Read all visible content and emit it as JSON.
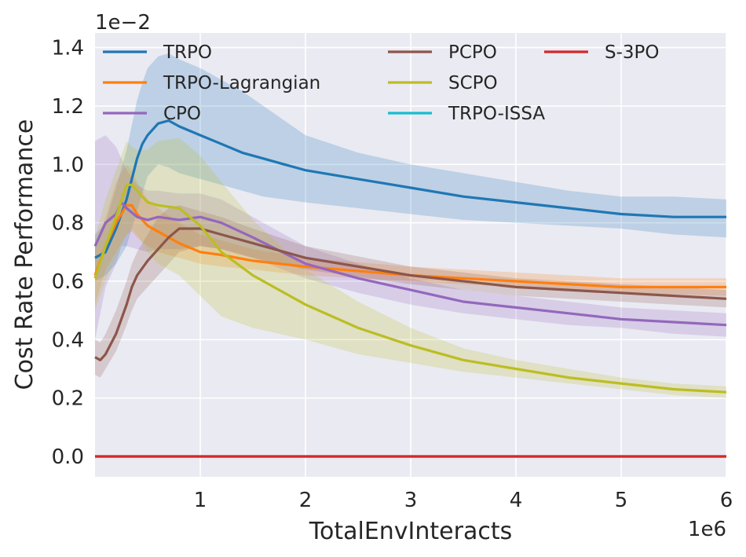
{
  "chart_data": {
    "type": "line",
    "title": "",
    "xlabel": "TotalEnvInteracts",
    "ylabel": "Cost Rate Performance",
    "x_scale_label": "1e6",
    "y_scale_label": "1e−2",
    "xlim": [
      0.0,
      6.0
    ],
    "ylim": [
      -0.07,
      1.45
    ],
    "xticks": [
      1,
      2,
      3,
      4,
      5,
      6
    ],
    "xtick_labels": [
      "1",
      "2",
      "3",
      "4",
      "5",
      "6"
    ],
    "yticks": [
      0.0,
      0.2,
      0.4,
      0.6,
      0.8,
      1.0,
      1.2,
      1.4
    ],
    "ytick_labels": [
      "0.0",
      "0.2",
      "0.4",
      "0.6",
      "0.8",
      "1.0",
      "1.2",
      "1.4"
    ],
    "grid": true,
    "legend_position": "top",
    "series": [
      {
        "name": "TRPO",
        "color": "#1f77b4",
        "x": [
          0.0,
          0.1,
          0.2,
          0.3,
          0.4,
          0.45,
          0.5,
          0.6,
          0.7,
          0.8,
          1.0,
          1.2,
          1.4,
          1.6,
          1.8,
          2.0,
          2.5,
          3.0,
          3.5,
          4.0,
          4.5,
          5.0,
          5.5,
          6.0
        ],
        "y": [
          0.68,
          0.7,
          0.78,
          0.88,
          1.02,
          1.07,
          1.1,
          1.14,
          1.15,
          1.13,
          1.1,
          1.07,
          1.04,
          1.02,
          1.0,
          0.98,
          0.95,
          0.92,
          0.89,
          0.87,
          0.85,
          0.83,
          0.82,
          0.82
        ],
        "lo": [
          0.6,
          0.62,
          0.66,
          0.72,
          0.84,
          0.9,
          0.96,
          1.0,
          0.99,
          0.97,
          0.95,
          0.93,
          0.91,
          0.89,
          0.88,
          0.87,
          0.85,
          0.83,
          0.81,
          0.8,
          0.79,
          0.78,
          0.76,
          0.75
        ],
        "hi": [
          0.76,
          0.8,
          0.92,
          1.05,
          1.22,
          1.28,
          1.33,
          1.37,
          1.38,
          1.36,
          1.33,
          1.29,
          1.25,
          1.2,
          1.15,
          1.1,
          1.04,
          1.0,
          0.97,
          0.94,
          0.91,
          0.89,
          0.89,
          0.88
        ]
      },
      {
        "name": "TRPO-Lagrangian",
        "color": "#ff7f0e",
        "x": [
          0.0,
          0.1,
          0.2,
          0.3,
          0.35,
          0.4,
          0.5,
          0.6,
          0.8,
          1.0,
          1.2,
          1.5,
          2.0,
          3.0,
          4.0,
          5.0,
          6.0
        ],
        "y": [
          0.62,
          0.72,
          0.8,
          0.86,
          0.86,
          0.83,
          0.79,
          0.77,
          0.73,
          0.7,
          0.69,
          0.67,
          0.65,
          0.62,
          0.6,
          0.58,
          0.58
        ],
        "lo": [
          0.52,
          0.64,
          0.7,
          0.76,
          0.77,
          0.75,
          0.72,
          0.7,
          0.68,
          0.66,
          0.65,
          0.64,
          0.62,
          0.6,
          0.58,
          0.56,
          0.55
        ],
        "hi": [
          0.72,
          0.82,
          0.94,
          1.0,
          0.98,
          0.94,
          0.88,
          0.85,
          0.8,
          0.76,
          0.74,
          0.71,
          0.68,
          0.65,
          0.63,
          0.61,
          0.61
        ]
      },
      {
        "name": "CPO",
        "color": "#9467bd",
        "x": [
          0.0,
          0.1,
          0.2,
          0.25,
          0.3,
          0.4,
          0.5,
          0.6,
          0.8,
          1.0,
          1.2,
          1.5,
          2.0,
          2.5,
          3.0,
          3.5,
          4.0,
          4.5,
          5.0,
          5.5,
          6.0
        ],
        "y": [
          0.72,
          0.8,
          0.83,
          0.87,
          0.85,
          0.82,
          0.81,
          0.82,
          0.81,
          0.82,
          0.8,
          0.75,
          0.66,
          0.61,
          0.57,
          0.53,
          0.51,
          0.49,
          0.47,
          0.46,
          0.45
        ],
        "lo": [
          0.4,
          0.58,
          0.66,
          0.72,
          0.72,
          0.71,
          0.7,
          0.71,
          0.71,
          0.72,
          0.71,
          0.68,
          0.61,
          0.56,
          0.52,
          0.49,
          0.47,
          0.45,
          0.44,
          0.42,
          0.41
        ],
        "hi": [
          1.08,
          1.1,
          1.06,
          1.02,
          0.98,
          0.93,
          0.91,
          0.91,
          0.9,
          0.9,
          0.88,
          0.82,
          0.72,
          0.66,
          0.61,
          0.57,
          0.55,
          0.53,
          0.51,
          0.5,
          0.49
        ]
      },
      {
        "name": "PCPO",
        "color": "#8c564b",
        "x": [
          0.0,
          0.05,
          0.1,
          0.2,
          0.3,
          0.35,
          0.4,
          0.5,
          0.6,
          0.7,
          0.8,
          1.0,
          1.2,
          1.5,
          2.0,
          3.0,
          4.0,
          5.0,
          6.0
        ],
        "y": [
          0.34,
          0.33,
          0.35,
          0.42,
          0.52,
          0.58,
          0.62,
          0.67,
          0.71,
          0.75,
          0.78,
          0.78,
          0.76,
          0.73,
          0.68,
          0.62,
          0.58,
          0.56,
          0.54
        ],
        "lo": [
          0.28,
          0.27,
          0.3,
          0.36,
          0.45,
          0.5,
          0.54,
          0.58,
          0.62,
          0.66,
          0.7,
          0.72,
          0.71,
          0.68,
          0.64,
          0.59,
          0.55,
          0.53,
          0.51
        ],
        "hi": [
          0.4,
          0.39,
          0.42,
          0.5,
          0.6,
          0.66,
          0.7,
          0.76,
          0.82,
          0.85,
          0.86,
          0.84,
          0.82,
          0.78,
          0.72,
          0.65,
          0.61,
          0.59,
          0.57
        ]
      },
      {
        "name": "SCPO",
        "color": "#bcbd22",
        "x": [
          0.0,
          0.1,
          0.2,
          0.3,
          0.35,
          0.4,
          0.5,
          0.6,
          0.8,
          1.0,
          1.2,
          1.5,
          2.0,
          2.5,
          3.0,
          3.5,
          4.0,
          4.5,
          5.0,
          5.5,
          6.0
        ],
        "y": [
          0.61,
          0.72,
          0.82,
          0.93,
          0.93,
          0.91,
          0.87,
          0.86,
          0.85,
          0.79,
          0.7,
          0.62,
          0.52,
          0.44,
          0.38,
          0.33,
          0.3,
          0.27,
          0.25,
          0.23,
          0.22
        ],
        "lo": [
          0.5,
          0.6,
          0.68,
          0.76,
          0.78,
          0.76,
          0.7,
          0.66,
          0.62,
          0.55,
          0.48,
          0.44,
          0.4,
          0.35,
          0.32,
          0.29,
          0.27,
          0.25,
          0.23,
          0.21,
          0.2
        ],
        "hi": [
          0.75,
          0.88,
          0.98,
          1.08,
          1.06,
          1.05,
          1.05,
          1.08,
          1.09,
          1.03,
          0.94,
          0.81,
          0.64,
          0.53,
          0.44,
          0.37,
          0.33,
          0.3,
          0.27,
          0.25,
          0.24
        ]
      },
      {
        "name": "TRPO-ISSA",
        "color": "#17becf",
        "x": [
          0.0,
          6.0
        ],
        "y": [
          0.0,
          0.0
        ]
      },
      {
        "name": "S-3PO",
        "color": "#d62728",
        "x": [
          0.0,
          6.0
        ],
        "y": [
          0.0,
          0.0
        ]
      }
    ]
  }
}
